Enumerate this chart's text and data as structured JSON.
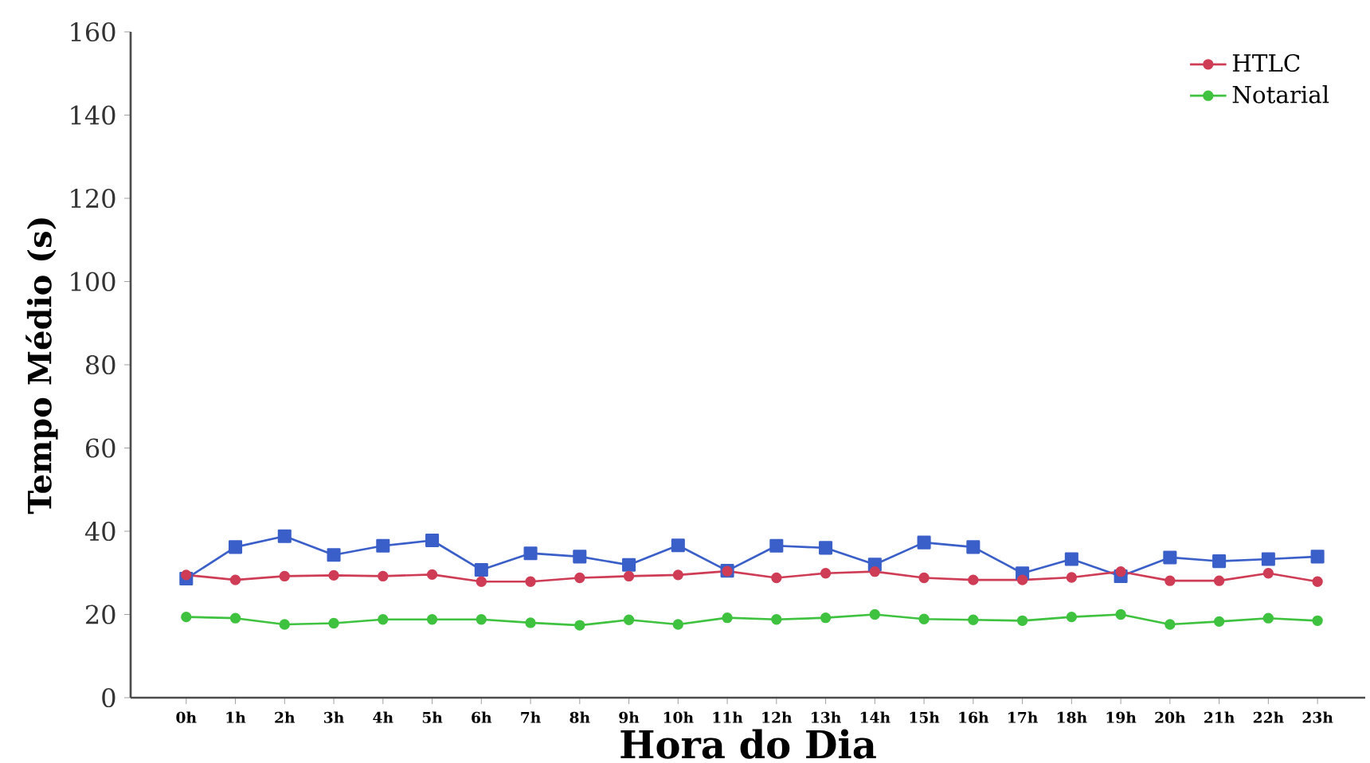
{
  "chart_data": {
    "type": "line",
    "xlabel": "Hora do Dia",
    "ylabel": "Tempo Médio (s)",
    "categories": [
      "0h",
      "1h",
      "2h",
      "3h",
      "4h",
      "5h",
      "6h",
      "7h",
      "8h",
      "9h",
      "10h",
      "11h",
      "12h",
      "13h",
      "14h",
      "15h",
      "16h",
      "17h",
      "18h",
      "19h",
      "20h",
      "21h",
      "22h",
      "23h"
    ],
    "ylim": [
      0,
      160
    ],
    "yticks": [
      0,
      20,
      40,
      60,
      80,
      100,
      120,
      140,
      160
    ],
    "legend": "top right",
    "grid": false,
    "series": [
      {
        "color": "#3b5fc9",
        "marker": "square",
        "values": [
          28.6,
          36.2,
          38.8,
          34.3,
          36.5,
          37.8,
          30.7,
          34.7,
          33.9,
          31.9,
          36.6,
          30.5,
          36.5,
          36.0,
          32.0,
          37.3,
          36.2,
          29.9,
          33.3,
          29.2,
          33.7,
          32.8,
          33.3,
          33.9
        ]
      },
      {
        "name": "HTLC",
        "color": "#cf3c55",
        "marker": "circle",
        "values": [
          29.5,
          28.3,
          29.2,
          29.4,
          29.2,
          29.6,
          27.9,
          27.9,
          28.8,
          29.2,
          29.5,
          30.4,
          28.8,
          29.9,
          30.3,
          28.8,
          28.3,
          28.3,
          28.9,
          30.3,
          28.1,
          28.1,
          29.9,
          27.9
        ]
      },
      {
        "name": "Notarial",
        "color": "#3fc23f",
        "marker": "circle",
        "values": [
          19.4,
          19.1,
          17.6,
          17.9,
          18.8,
          18.8,
          18.8,
          18.0,
          17.4,
          18.7,
          17.6,
          19.2,
          18.8,
          19.2,
          20.0,
          18.9,
          18.7,
          18.5,
          19.4,
          20.0,
          17.6,
          18.3,
          19.1,
          18.5
        ]
      }
    ]
  }
}
